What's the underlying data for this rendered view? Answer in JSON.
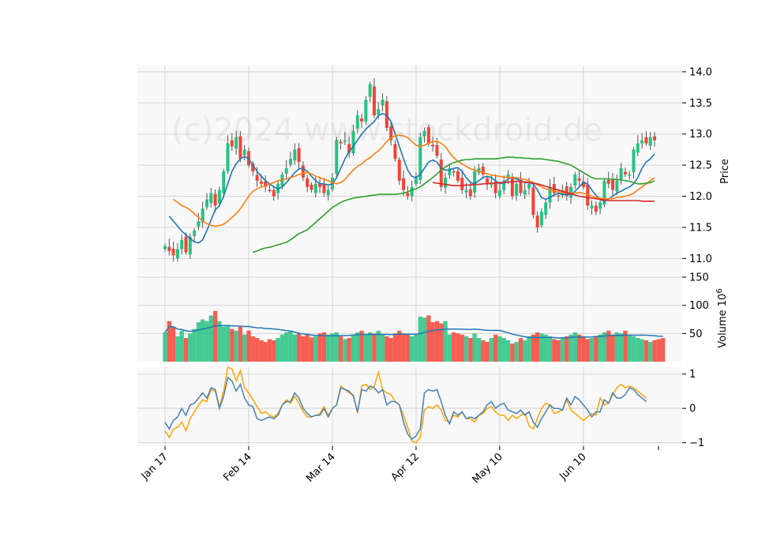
{
  "watermark": "(c)2024 www.stockdroid.de",
  "colors": {
    "up": "#26c281",
    "down": "#f44336",
    "ma_fast": "#1f77b4",
    "ma_mid": "#ff7f0e",
    "ma_slow": "#2ca02c",
    "ma_long": "#d62728",
    "vol_avg": "#1f77b4",
    "osc_a": "#4682b4",
    "osc_b": "#ffa500",
    "panel_bg": "#f8f8f8",
    "grid": "#d4d4d4"
  },
  "chart_data": {
    "type": "candlestick",
    "x_tick_labels": [
      "Jan 17",
      "Feb 14",
      "Mar 14",
      "Apr 12",
      "May 10",
      "Jun 10"
    ],
    "x_tick_index": [
      0,
      20,
      40,
      60,
      80,
      100
    ],
    "price": {
      "ylabel": "Price",
      "ylim": [
        10.7,
        14.1
      ],
      "yticks": [
        "11.0",
        "11.5",
        "12.0",
        "12.5",
        "13.0",
        "13.5",
        "14.0"
      ],
      "ytick_values": [
        11.0,
        11.5,
        12.0,
        12.5,
        13.0,
        13.5,
        14.0
      ],
      "close": [
        11.2,
        11.12,
        11.05,
        11.15,
        11.3,
        11.1,
        11.35,
        11.45,
        11.6,
        11.8,
        11.95,
        12.05,
        11.85,
        12.1,
        12.4,
        12.85,
        12.8,
        12.95,
        12.6,
        12.75,
        12.5,
        12.4,
        12.25,
        12.2,
        12.15,
        12.1,
        12.0,
        12.2,
        12.35,
        12.45,
        12.6,
        12.75,
        12.55,
        12.3,
        12.15,
        12.1,
        12.2,
        12.15,
        12.05,
        12.1,
        12.3,
        12.9,
        12.85,
        12.9,
        12.7,
        13.05,
        13.3,
        13.2,
        13.55,
        13.8,
        13.3,
        13.4,
        13.55,
        13.1,
        12.9,
        12.6,
        12.25,
        12.1,
        12.0,
        12.15,
        12.3,
        12.95,
        13.05,
        12.85,
        12.8,
        12.65,
        12.15,
        12.3,
        12.45,
        12.4,
        12.25,
        12.1,
        12.1,
        12.0,
        12.4,
        12.45,
        12.35,
        12.2,
        12.2,
        12.05,
        12.1,
        12.25,
        12.35,
        12.0,
        12.2,
        12.05,
        12.1,
        12.2,
        11.7,
        11.5,
        11.75,
        11.9,
        12.15,
        12.05,
        12.0,
        12.1,
        12.0,
        12.15,
        12.35,
        12.25,
        12.15,
        11.85,
        11.85,
        11.75,
        11.9,
        12.25,
        12.2,
        12.1,
        12.25,
        12.45,
        12.35,
        12.35,
        12.75,
        12.85,
        12.9,
        12.85,
        12.95,
        12.9
      ],
      "series": [
        {
          "name": "",
          "values": [
            11.68,
            11.6,
            11.52,
            11.44,
            11.38,
            11.32,
            11.27,
            11.25,
            11.3,
            11.45,
            11.62,
            11.78,
            11.85,
            12.0,
            12.2,
            12.4,
            12.52,
            12.6,
            12.64,
            12.6,
            12.5,
            12.4,
            12.32,
            12.25,
            12.2,
            12.15,
            12.12,
            12.15,
            12.22,
            12.3,
            12.38,
            12.44,
            12.45,
            12.4,
            12.32,
            12.25,
            12.2,
            12.2,
            12.18,
            12.2,
            12.3,
            12.45,
            12.6,
            12.72,
            12.8,
            12.9,
            13.0,
            13.08,
            13.14,
            13.2,
            13.3,
            13.33,
            13.3,
            13.2,
            13.0,
            12.8,
            12.6,
            12.42,
            12.32,
            12.3,
            12.35,
            12.45,
            12.55,
            12.58,
            12.55,
            12.45,
            12.42,
            12.42,
            12.45,
            12.46,
            12.4,
            12.3,
            12.22,
            12.2,
            12.25,
            12.3,
            12.32,
            12.3,
            12.25,
            12.2,
            12.22,
            12.28,
            12.3,
            12.28,
            12.25,
            12.22,
            12.22,
            12.2,
            12.1,
            11.98,
            11.95,
            11.98,
            12.02,
            12.05,
            12.03,
            12.03,
            12.03,
            12.08,
            12.15,
            12.22,
            12.2,
            12.1,
            12.02,
            11.95,
            11.92,
            11.95,
            12.0,
            12.05,
            12.08,
            12.12,
            12.15,
            12.2,
            12.3,
            12.45,
            12.55,
            12.6,
            12.68
          ]
        },
        {
          "name": "",
          "values": [
            11.95,
            11.9,
            11.85,
            11.82,
            11.78,
            11.72,
            11.66,
            11.6,
            11.56,
            11.53,
            11.52,
            11.53,
            11.55,
            11.6,
            11.66,
            11.72,
            11.8,
            11.9,
            12.0,
            12.08,
            12.12,
            12.15,
            12.17,
            12.2,
            12.22,
            12.25,
            12.26,
            12.28,
            12.3,
            12.32,
            12.35,
            12.37,
            12.38,
            12.36,
            12.32,
            12.3,
            12.27,
            12.25,
            12.22,
            12.2,
            12.22,
            12.27,
            12.35,
            12.42,
            12.48,
            12.52,
            12.58,
            12.62,
            12.68,
            12.73,
            12.8,
            12.88,
            12.94,
            12.97,
            12.98,
            12.97,
            12.94,
            12.88,
            12.82,
            12.8,
            12.82,
            12.85,
            12.88,
            12.88,
            12.85,
            12.8,
            12.7,
            12.62,
            12.56,
            12.52,
            12.48,
            12.44,
            12.42,
            12.4,
            12.38,
            12.36,
            12.34,
            12.33,
            12.32,
            12.31,
            12.3,
            12.3,
            12.3,
            12.28,
            12.27,
            12.25,
            12.22,
            12.18,
            12.15,
            12.12,
            12.1,
            12.08,
            12.07,
            12.06,
            12.05,
            12.05,
            12.05,
            12.06,
            12.05,
            12.03,
            12.0,
            11.98,
            11.97,
            11.96,
            11.96,
            11.96,
            11.98,
            11.99,
            12.0,
            12.02,
            12.05,
            12.1,
            12.15,
            12.2,
            12.25,
            12.3
          ]
        },
        {
          "name": "",
          "values": [
            11.1,
            11.12,
            11.15,
            11.17,
            11.18,
            11.2,
            11.22,
            11.24,
            11.26,
            11.3,
            11.35,
            11.4,
            11.43,
            11.46,
            11.52,
            11.58,
            11.64,
            11.7,
            11.76,
            11.82,
            11.86,
            11.9,
            11.93,
            11.95,
            11.97,
            11.98,
            11.99,
            12.0,
            12.01,
            12.02,
            12.03,
            12.03,
            12.03,
            12.03,
            12.03,
            12.04,
            12.05,
            12.07,
            12.1,
            12.12,
            12.15,
            12.2,
            12.25,
            12.3,
            12.36,
            12.42,
            12.47,
            12.51,
            12.54,
            12.56,
            12.58,
            12.59,
            12.59,
            12.6,
            12.6,
            12.6,
            12.6,
            12.6,
            12.6,
            12.61,
            12.62,
            12.63,
            12.63,
            12.62,
            12.62,
            12.61,
            12.61,
            12.6,
            12.6,
            12.6,
            12.59,
            12.58,
            12.57,
            12.56,
            12.54,
            12.52,
            12.5,
            12.46,
            12.42,
            12.38,
            12.34,
            12.3,
            12.28,
            12.28,
            12.28,
            12.28,
            12.27,
            12.27,
            12.26,
            12.25,
            12.24,
            12.22,
            12.2,
            12.2,
            12.21,
            12.22,
            12.25
          ]
        },
        {
          "name": "",
          "values": [
            12.22,
            12.21,
            12.2,
            12.19,
            12.18,
            12.17,
            12.17,
            12.17,
            12.18,
            12.18,
            12.19,
            12.19,
            12.2,
            12.2,
            12.21,
            12.21,
            12.22,
            12.22,
            12.23,
            12.23,
            12.24,
            12.24,
            12.23,
            12.22,
            12.21,
            12.2,
            12.18,
            12.16,
            12.14,
            12.12,
            12.1,
            12.08,
            12.06,
            12.04,
            12.02,
            12.0,
            11.99,
            11.98,
            11.97,
            11.96,
            11.95,
            11.94,
            11.93,
            11.93,
            11.93,
            11.93,
            11.93,
            11.93,
            11.93,
            11.93,
            11.92,
            11.92,
            11.92,
            11.92
          ]
        }
      ]
    },
    "volume": {
      "ylabel": "Volume  10",
      "ylabel_exp": "6",
      "ylim": [
        0,
        150
      ],
      "yticks": [
        "50",
        "100",
        "150"
      ],
      "ytick_values": [
        50,
        100,
        150
      ],
      "values": [
        52,
        72,
        62,
        45,
        55,
        42,
        50,
        58,
        70,
        75,
        72,
        82,
        90,
        72,
        62,
        65,
        58,
        55,
        62,
        48,
        55,
        45,
        42,
        38,
        35,
        40,
        38,
        42,
        48,
        52,
        55,
        48,
        50,
        45,
        48,
        43,
        45,
        50,
        52,
        48,
        50,
        52,
        45,
        40,
        42,
        48,
        52,
        55,
        48,
        52,
        50,
        55,
        48,
        45,
        42,
        50,
        55,
        50,
        48,
        45,
        48,
        80,
        78,
        82,
        70,
        72,
        68,
        72,
        48,
        52,
        50,
        48,
        45,
        42,
        50,
        42,
        38,
        35,
        42,
        48,
        45,
        42,
        38,
        32,
        35,
        42,
        38,
        45,
        48,
        52,
        50,
        48,
        45,
        40,
        38,
        42,
        45,
        48,
        52,
        48,
        45,
        40,
        42,
        45,
        48,
        52,
        55,
        48,
        52,
        50,
        55,
        48,
        45,
        42,
        40,
        38,
        35,
        38,
        40,
        42
      ]
    },
    "oscillator": {
      "ylim": [
        -1.1,
        1.2
      ],
      "yticks": [
        "-1",
        "0",
        "1"
      ],
      "ytick_values": [
        -1,
        0,
        1
      ],
      "series": [
        {
          "name": "",
          "values": [
            -0.4,
            -0.6,
            -0.35,
            -0.25,
            0,
            -0.2,
            0.1,
            0.15,
            0.3,
            0.45,
            0.3,
            0.6,
            0.55,
            0,
            0.35,
            0.9,
            0.8,
            0.5,
            0.7,
            0.3,
            0.1,
            0.05,
            -0.3,
            -0.35,
            -0.3,
            -0.25,
            -0.3,
            -0.2,
            0.1,
            0.2,
            0.2,
            0.45,
            0.3,
            0,
            -0.15,
            -0.25,
            -0.2,
            -0.2,
            0,
            -0.25,
            0,
            0.1,
            0.6,
            0.55,
            0.5,
            0.35,
            -0.1,
            0.55,
            0.5,
            0.65,
            0.6,
            0.45,
            0.55,
            0.1,
            0.2,
            0.2,
            0.1,
            -0.4,
            -0.75,
            -0.9,
            -0.8,
            -0.6,
            0.45,
            0.55,
            0.5,
            0.55,
            0.2,
            -0.2,
            -0.45,
            -0.1,
            -0.2,
            -0.1,
            -0.3,
            -0.25,
            -0.3,
            -0.2,
            -0.1,
            0.1,
            0.2,
            0,
            0.1,
            0.15,
            -0.05,
            -0.1,
            -0.15,
            -0.05,
            -0.2,
            -0.1,
            -0.4,
            -0.55,
            -0.3,
            -0.1,
            0.1,
            0,
            0,
            -0.05,
            0.3,
            0.1,
            0.35,
            0.25,
            0.1,
            -0.05,
            -0.25,
            -0.1,
            -0.1,
            0.25,
            0.15,
            0.45,
            0.3,
            0.3,
            0.4,
            0.6,
            0.55,
            0.4,
            0.3,
            0.2
          ]
        },
        {
          "name": "",
          "values": [
            -0.65,
            -0.85,
            -0.6,
            -0.55,
            -0.4,
            -0.65,
            -0.3,
            -0.1,
            0.1,
            0.25,
            0.2,
            0.55,
            0.5,
            0.05,
            0.5,
            1.2,
            1.15,
            0.8,
            1.1,
            0.6,
            0.45,
            0.25,
            0.05,
            -0.15,
            -0.1,
            -0.2,
            -0.25,
            -0.15,
            0.1,
            0.25,
            0.15,
            0.35,
            0.15,
            -0.1,
            -0.25,
            -0.25,
            -0.2,
            -0.15,
            0.05,
            -0.2,
            0,
            0.1,
            0.65,
            0.55,
            0.45,
            0.4,
            -0.15,
            0.65,
            0.7,
            0.55,
            0.65,
            1.05,
            0.55,
            0.45,
            0.4,
            0.2,
            0.1,
            -0.2,
            -0.55,
            -0.95,
            -1.0,
            -0.85,
            -0.05,
            0.05,
            0,
            0.1,
            -0.05,
            -0.35,
            -0.4,
            -0.2,
            -0.25,
            -0.1,
            -0.3,
            -0.3,
            -0.4,
            -0.2,
            -0.15,
            0,
            0.05,
            -0.1,
            -0.2,
            -0.2,
            -0.35,
            -0.2,
            -0.3,
            -0.2,
            -0.15,
            -0.5,
            -0.6,
            -0.3,
            0,
            0.15,
            0.1,
            -0.15,
            -0.1,
            -0.05,
            0.25,
            -0.05,
            -0.15,
            -0.25,
            -0.35,
            -0.25,
            -0.15,
            -0.2,
            0.3,
            0.1,
            0.15,
            0.4,
            0.6,
            0.7,
            0.6,
            0.65,
            0.6,
            0.5,
            0.4,
            0.3
          ]
        }
      ]
    }
  }
}
